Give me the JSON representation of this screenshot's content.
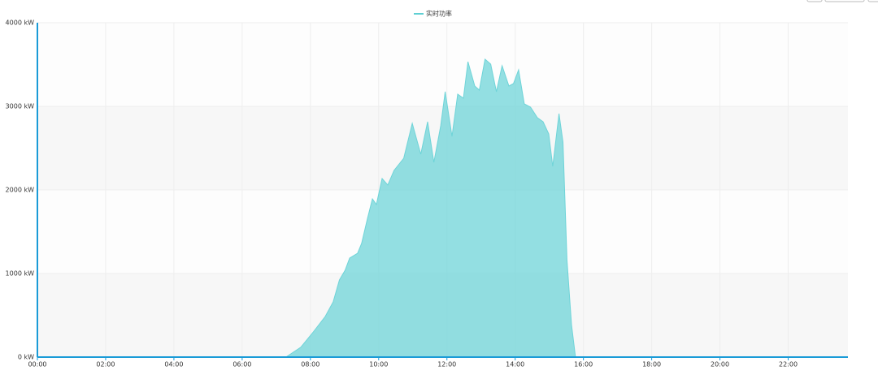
{
  "chart_data": {
    "type": "area",
    "legend": "实时功率",
    "legend_position": "top",
    "color": "#6fd4d8",
    "grid": true,
    "x": [
      0,
      437,
      463,
      484,
      506,
      520,
      531,
      541,
      549,
      563,
      570,
      580,
      589,
      596,
      606,
      616,
      627,
      644,
      659,
      674,
      686,
      697,
      709,
      717,
      729,
      739,
      749,
      757,
      769,
      777,
      787,
      797,
      807,
      817,
      829,
      837,
      846,
      856,
      867,
      879,
      889,
      899,
      906,
      917,
      924,
      931,
      939,
      946,
      1425
    ],
    "values": [
      0,
      0,
      117,
      291,
      485,
      660,
      922,
      1039,
      1184,
      1243,
      1359,
      1650,
      1893,
      1825,
      2136,
      2058,
      2233,
      2379,
      2796,
      2427,
      2816,
      2330,
      2767,
      3175,
      2641,
      3146,
      3097,
      3534,
      3243,
      3194,
      3563,
      3505,
      3175,
      3485,
      3243,
      3272,
      3437,
      3029,
      2990,
      2864,
      2816,
      2670,
      2282,
      2913,
      2573,
      1165,
      388,
      0,
      0
    ],
    "xlim": [
      0,
      1425
    ],
    "xticks": [
      {
        "value": 0,
        "label": "00:00"
      },
      {
        "value": 120,
        "label": "02:00"
      },
      {
        "value": 240,
        "label": "04:00"
      },
      {
        "value": 360,
        "label": "06:00"
      },
      {
        "value": 480,
        "label": "08:00"
      },
      {
        "value": 600,
        "label": "10:00"
      },
      {
        "value": 720,
        "label": "12:00"
      },
      {
        "value": 840,
        "label": "14:00"
      },
      {
        "value": 960,
        "label": "16:00"
      },
      {
        "value": 1080,
        "label": "18:00"
      },
      {
        "value": 1200,
        "label": "20:00"
      },
      {
        "value": 1320,
        "label": "22:00"
      }
    ],
    "ylim": [
      0,
      4000
    ],
    "yticks": [
      {
        "value": 0,
        "label": "0 kW"
      },
      {
        "value": 1000,
        "label": "1000 kW"
      },
      {
        "value": 2000,
        "label": "2000 kW"
      },
      {
        "value": 3000,
        "label": "3000 kW"
      },
      {
        "value": 4000,
        "label": "4000 kW"
      }
    ]
  }
}
